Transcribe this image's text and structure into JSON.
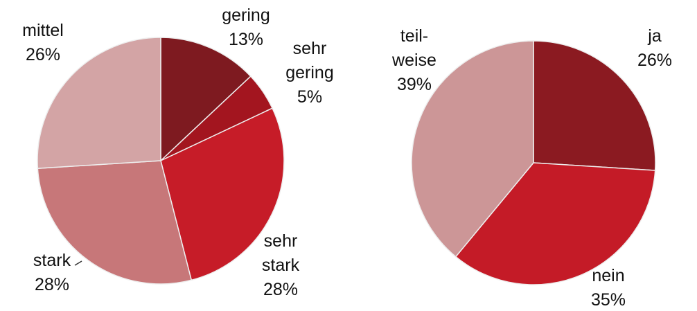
{
  "chart_data": [
    {
      "type": "pie",
      "categories": [
        "gering",
        "sehr gering",
        "sehr stark",
        "stark",
        "mittel"
      ],
      "values": [
        13,
        5,
        28,
        28,
        26
      ],
      "value_labels": [
        "13%",
        "5%",
        "28%",
        "28%",
        "26%"
      ],
      "colors": [
        "#7e1a20",
        "#a3151f",
        "#c61c28",
        "#c77779",
        "#d3a4a5"
      ]
    },
    {
      "type": "pie",
      "categories": [
        "ja",
        "nein",
        "teil-weise"
      ],
      "values": [
        26,
        35,
        39
      ],
      "value_labels": [
        "26%",
        "35%",
        "39%"
      ],
      "colors": [
        "#8b1a21",
        "#c41b27",
        "#cc9697"
      ]
    }
  ]
}
